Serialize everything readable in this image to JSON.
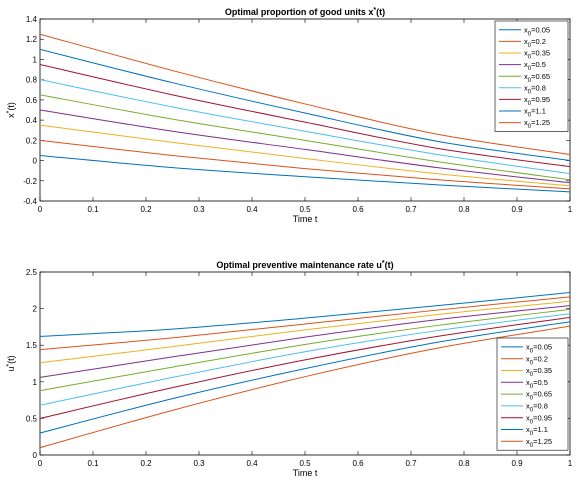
{
  "chart_data": [
    {
      "type": "line",
      "title": "Optimal proportion of good units x*(t)",
      "xlabel": "Time t",
      "ylabel": "x*(t)",
      "xlim": [
        0,
        1
      ],
      "ylim": [
        -0.4,
        1.4
      ],
      "xticks": [
        "0",
        "0.1",
        "0.2",
        "0.3",
        "0.4",
        "0.5",
        "0.6",
        "0.7",
        "0.8",
        "0.9",
        "1"
      ],
      "yticks": [
        "-0.4",
        "-0.2",
        "0",
        "0.2",
        "0.4",
        "0.6",
        "0.8",
        "1",
        "1.2",
        "1.4"
      ],
      "grid": false,
      "legend_position": "top-right",
      "x": [
        0,
        0.25,
        0.5,
        0.75,
        1
      ],
      "series": [
        {
          "name": "x0=0.05",
          "color": "#0072BD",
          "values": [
            0.05,
            -0.07,
            -0.16,
            -0.24,
            -0.31
          ]
        },
        {
          "name": "x0=0.2",
          "color": "#D95319",
          "values": [
            0.2,
            0.05,
            -0.08,
            -0.19,
            -0.28
          ]
        },
        {
          "name": "x0=0.35",
          "color": "#EDB120",
          "values": [
            0.35,
            0.18,
            0.02,
            -0.13,
            -0.25
          ]
        },
        {
          "name": "x0=0.5",
          "color": "#7E2F8E",
          "values": [
            0.5,
            0.29,
            0.11,
            -0.07,
            -0.22
          ]
        },
        {
          "name": "x0=0.65",
          "color": "#77AC30",
          "values": [
            0.65,
            0.41,
            0.2,
            -0.01,
            -0.19
          ]
        },
        {
          "name": "x0=0.8",
          "color": "#4DBEEE",
          "values": [
            0.8,
            0.53,
            0.29,
            0.06,
            -0.13
          ]
        },
        {
          "name": "x0=0.95",
          "color": "#A2142F",
          "values": [
            0.95,
            0.65,
            0.38,
            0.12,
            -0.06
          ]
        },
        {
          "name": "x0=1.1",
          "color": "#0072BD",
          "values": [
            1.1,
            0.77,
            0.47,
            0.19,
            0.0
          ]
        },
        {
          "name": "x0=1.25",
          "color": "#D95319",
          "values": [
            1.25,
            0.89,
            0.56,
            0.26,
            0.06
          ]
        }
      ]
    },
    {
      "type": "line",
      "title": "Optimal preventive maintenance rate u*(t)",
      "xlabel": "Time t",
      "ylabel": "u*(t)",
      "xlim": [
        0,
        1
      ],
      "ylim": [
        0,
        2.5
      ],
      "xticks": [
        "0",
        "0.1",
        "0.2",
        "0.3",
        "0.4",
        "0.5",
        "0.6",
        "0.7",
        "0.8",
        "0.9",
        "1"
      ],
      "yticks": [
        "0",
        "0.5",
        "1",
        "1.5",
        "2",
        "2.5"
      ],
      "grid": false,
      "legend_position": "bottom-right",
      "x": [
        0,
        0.25,
        0.5,
        0.75,
        1
      ],
      "series": [
        {
          "name": "x0=0.05",
          "color": "#0072BD",
          "values": [
            1.62,
            1.72,
            1.87,
            2.04,
            2.22
          ]
        },
        {
          "name": "x0=0.2",
          "color": "#D95319",
          "values": [
            1.44,
            1.6,
            1.79,
            1.98,
            2.16
          ]
        },
        {
          "name": "x0=0.35",
          "color": "#EDB120",
          "values": [
            1.26,
            1.48,
            1.71,
            1.92,
            2.1
          ]
        },
        {
          "name": "x0=0.5",
          "color": "#7E2F8E",
          "values": [
            1.06,
            1.34,
            1.61,
            1.85,
            2.04
          ]
        },
        {
          "name": "x0=0.65",
          "color": "#77AC30",
          "values": [
            0.88,
            1.2,
            1.51,
            1.77,
            1.99
          ]
        },
        {
          "name": "x0=0.8",
          "color": "#4DBEEE",
          "values": [
            0.68,
            1.06,
            1.41,
            1.7,
            1.93
          ]
        },
        {
          "name": "x0=0.95",
          "color": "#A2142F",
          "values": [
            0.5,
            0.92,
            1.3,
            1.62,
            1.88
          ]
        },
        {
          "name": "x0=1.1",
          "color": "#0072BD",
          "values": [
            0.3,
            0.77,
            1.18,
            1.54,
            1.82
          ]
        },
        {
          "name": "x0=1.25",
          "color": "#D95319",
          "values": [
            0.1,
            0.61,
            1.07,
            1.46,
            1.76
          ]
        }
      ]
    }
  ]
}
